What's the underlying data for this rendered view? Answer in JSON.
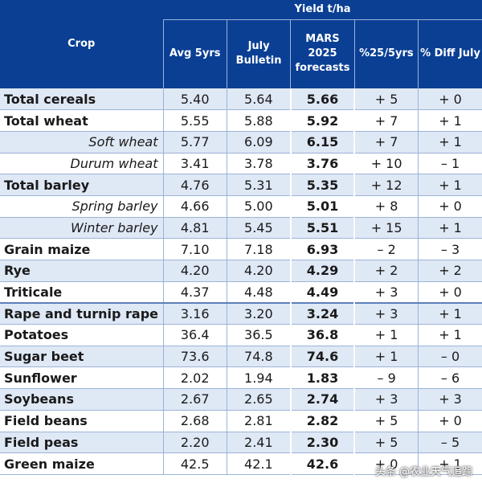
{
  "header": {
    "crop": "Crop",
    "group": "Yield t/ha",
    "avg": "Avg 5yrs",
    "bulletin": "July Bulletin",
    "forecast": "MARS 2025 forecasts",
    "diff5": "%25/5yrs",
    "diffJuly": "% Diff July"
  },
  "rows": [
    {
      "crop": "Total cereals",
      "sub": false,
      "avg": "5.40",
      "july": "5.64",
      "fc": "5.66",
      "d5": "+ 5",
      "d5s": "pos",
      "dj": "+ 0",
      "djs": "pos",
      "alt": true,
      "sec": false
    },
    {
      "crop": "Total wheat",
      "sub": false,
      "avg": "5.55",
      "july": "5.88",
      "fc": "5.92",
      "d5": "+ 7",
      "d5s": "pos",
      "dj": "+ 1",
      "djs": "pos",
      "alt": false,
      "sec": false
    },
    {
      "crop": "Soft wheat",
      "sub": true,
      "avg": "5.77",
      "july": "6.09",
      "fc": "6.15",
      "d5": "+ 7",
      "d5s": "pos",
      "dj": "+ 1",
      "djs": "pos",
      "alt": true,
      "sec": false
    },
    {
      "crop": "Durum wheat",
      "sub": true,
      "avg": "3.41",
      "july": "3.78",
      "fc": "3.76",
      "d5": "+ 10",
      "d5s": "pos",
      "dj": "– 1",
      "djs": "neg",
      "alt": false,
      "sec": false
    },
    {
      "crop": "Total barley",
      "sub": false,
      "avg": "4.76",
      "july": "5.31",
      "fc": "5.35",
      "d5": "+ 12",
      "d5s": "pos",
      "dj": "+ 1",
      "djs": "pos",
      "alt": true,
      "sec": false
    },
    {
      "crop": "Spring barley",
      "sub": true,
      "avg": "4.66",
      "july": "5.00",
      "fc": "5.01",
      "d5": "+ 8",
      "d5s": "pos",
      "dj": "+ 0",
      "djs": "pos",
      "alt": false,
      "sec": false
    },
    {
      "crop": "Winter barley",
      "sub": true,
      "avg": "4.81",
      "july": "5.45",
      "fc": "5.51",
      "d5": "+ 15",
      "d5s": "pos",
      "dj": "+ 1",
      "djs": "pos",
      "alt": true,
      "sec": false
    },
    {
      "crop": "Grain maize",
      "sub": false,
      "avg": "7.10",
      "july": "7.18",
      "fc": "6.93",
      "d5": "– 2",
      "d5s": "neg",
      "dj": "– 3",
      "djs": "neg",
      "alt": false,
      "sec": false
    },
    {
      "crop": "Rye",
      "sub": false,
      "avg": "4.20",
      "july": "4.20",
      "fc": "4.29",
      "d5": "+ 2",
      "d5s": "pos",
      "dj": "+ 2",
      "djs": "pos",
      "alt": true,
      "sec": false
    },
    {
      "crop": "Triticale",
      "sub": false,
      "avg": "4.37",
      "july": "4.48",
      "fc": "4.49",
      "d5": "+ 3",
      "d5s": "pos",
      "dj": "+ 0",
      "djs": "pos",
      "alt": false,
      "sec": false
    },
    {
      "crop": "Rape and turnip rape",
      "sub": false,
      "avg": "3.16",
      "july": "3.20",
      "fc": "3.24",
      "d5": "+ 3",
      "d5s": "pos",
      "dj": "+ 1",
      "djs": "pos",
      "alt": true,
      "sec": true
    },
    {
      "crop": "Potatoes",
      "sub": false,
      "avg": "36.4",
      "july": "36.5",
      "fc": "36.8",
      "d5": "+ 1",
      "d5s": "pos",
      "dj": "+ 1",
      "djs": "pos",
      "alt": false,
      "sec": false
    },
    {
      "crop": "Sugar beet",
      "sub": false,
      "avg": "73.6",
      "july": "74.8",
      "fc": "74.6",
      "d5": "+ 1",
      "d5s": "pos",
      "dj": "– 0",
      "djs": "neg",
      "alt": true,
      "sec": false
    },
    {
      "crop": "Sunflower",
      "sub": false,
      "avg": "2.02",
      "july": "1.94",
      "fc": "1.83",
      "d5": "– 9",
      "d5s": "neg",
      "dj": "– 6",
      "djs": "neg",
      "alt": false,
      "sec": false
    },
    {
      "crop": "Soybeans",
      "sub": false,
      "avg": "2.67",
      "july": "2.65",
      "fc": "2.74",
      "d5": "+ 3",
      "d5s": "pos",
      "dj": "+ 3",
      "djs": "pos",
      "alt": true,
      "sec": false
    },
    {
      "crop": "Field beans",
      "sub": false,
      "avg": "2.68",
      "july": "2.81",
      "fc": "2.82",
      "d5": "+ 5",
      "d5s": "pos",
      "dj": "+ 0",
      "djs": "pos",
      "alt": false,
      "sec": false
    },
    {
      "crop": "Field peas",
      "sub": false,
      "avg": "2.20",
      "july": "2.41",
      "fc": "2.30",
      "d5": "+ 5",
      "d5s": "pos",
      "dj": "– 5",
      "djs": "neg",
      "alt": true,
      "sec": false
    },
    {
      "crop": "Green maize",
      "sub": false,
      "avg": "42.5",
      "july": "42.1",
      "fc": "42.6",
      "d5": "+ 0",
      "d5s": "pos",
      "dj": "+ 1",
      "djs": "pos",
      "alt": false,
      "sec": false
    }
  ],
  "watermark": "头条 @农业天气追踪",
  "colors": {
    "header_bg": "#0a3f94",
    "row_alt": "#dfe8f5",
    "positive": "#1f4fa8",
    "negative": "#d7312a"
  }
}
